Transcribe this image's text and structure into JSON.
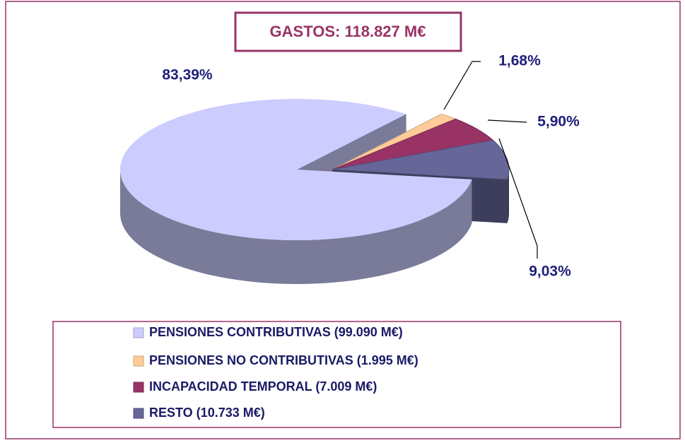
{
  "chart_data": {
    "type": "pie",
    "title": "GASTOS: 118.827 M€",
    "categories": [
      "PENSIONES CONTRIBUTIVAS (99.090 M€)",
      "PENSIONES NO CONTRIBUTIVAS (1.995 M€)",
      "INCAPACIDAD TEMPORAL (7.009 M€)",
      "RESTO (10.733 M€)"
    ],
    "values": [
      83.39,
      1.68,
      5.9,
      9.03
    ],
    "value_labels": [
      "83,39%",
      "1,68%",
      "5,90%",
      "9,03%"
    ],
    "colors": [
      "#ccccff",
      "#ffcc99",
      "#993366",
      "#666699"
    ]
  }
}
